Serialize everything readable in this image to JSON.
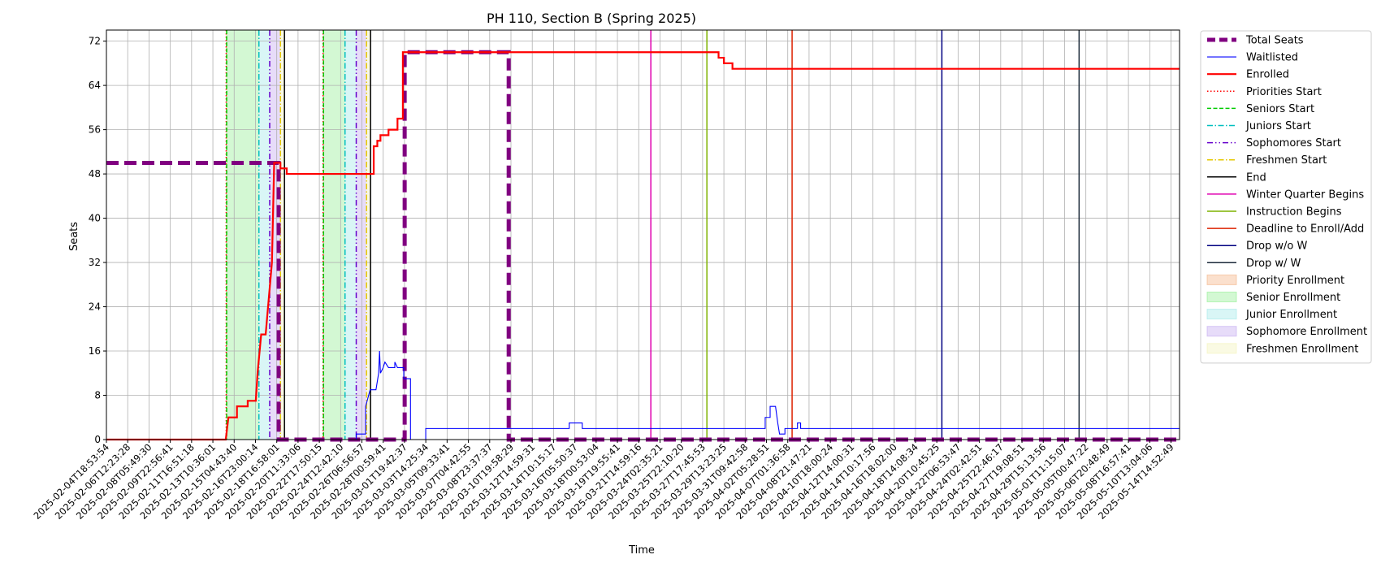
{
  "chart_data": {
    "type": "line",
    "title": "PH 110, Section B (Spring 2025)",
    "xlabel": "Time",
    "ylabel": "Seats",
    "ylim": [
      0,
      74
    ],
    "yticks": [
      0,
      8,
      16,
      24,
      32,
      40,
      48,
      56,
      64,
      72
    ],
    "x_start": "2025-02-04T18:53:54",
    "x_end": "2025-05-15T12:00:00",
    "xtick_labels": [
      "2025-02-04T18:53:54",
      "2025-02-06T12:23:28",
      "2025-02-08T05:49:30",
      "2025-02-09T22:56:41",
      "2025-02-11T16:51:18",
      "2025-02-13T10:36:01",
      "2025-02-15T04:43:40",
      "2025-02-16T23:00:14",
      "2025-02-18T16:58:01",
      "2025-02-20T11:33:06",
      "2025-02-22T17:50:15",
      "2025-02-24T12:42:10",
      "2025-02-26T06:56:57",
      "2025-02-28T00:59:41",
      "2025-03-01T19:42:37",
      "2025-03-03T14:25:34",
      "2025-03-05T09:33:41",
      "2025-03-07T04:42:55",
      "2025-03-08T23:37:37",
      "2025-03-10T19:58:29",
      "2025-03-12T14:59:31",
      "2025-03-14T10:15:17",
      "2025-03-16T05:50:37",
      "2025-03-18T00:53:04",
      "2025-03-19T19:55:41",
      "2025-03-21T14:59:16",
      "2025-03-24T02:35:21",
      "2025-03-25T22:10:20",
      "2025-03-27T17:45:53",
      "2025-03-29T13:23:25",
      "2025-03-31T09:42:58",
      "2025-04-02T05:28:51",
      "2025-04-07T01:36:58",
      "2025-04-08T21:47:21",
      "2025-04-10T18:00:24",
      "2025-04-12T14:00:31",
      "2025-04-14T10:17:56",
      "2025-04-16T18:02:00",
      "2025-04-18T14:08:34",
      "2025-04-20T10:45:25",
      "2025-04-22T06:53:47",
      "2025-04-24T02:42:51",
      "2025-04-25T22:46:17",
      "2025-04-27T19:08:51",
      "2025-04-29T15:13:56",
      "2025-05-01T11:15:07",
      "2025-05-05T00:47:22",
      "2025-05-06T20:48:49",
      "2025-05-08T16:57:41",
      "2025-05-10T13:04:06",
      "2025-05-14T14:52:49"
    ],
    "grid": true,
    "legend_position": "outside-right",
    "series": [
      {
        "name": "Total Seats",
        "color": "#800080",
        "style": "dashed-thick",
        "points": [
          [
            "2025-02-04T18:53:54",
            50
          ],
          [
            "2025-02-20T19:00:00",
            50
          ],
          [
            "2025-02-20T19:00:00",
            0
          ],
          [
            "2025-03-04T12:00:00",
            0
          ],
          [
            "2025-03-04T12:00:00",
            70
          ],
          [
            "2025-03-14T04:00:00",
            70
          ],
          [
            "2025-03-14T04:00:00",
            0
          ],
          [
            "2025-05-15T12:00:00",
            0
          ]
        ]
      },
      {
        "name": "Waitlisted",
        "color": "#0000ff",
        "style": "solid-thin",
        "points": [
          [
            "2025-02-04T18:53:54",
            0
          ],
          [
            "2025-02-28T00:00:00",
            0
          ],
          [
            "2025-02-28T00:00:00",
            1
          ],
          [
            "2025-02-28T21:00:00",
            1
          ],
          [
            "2025-02-28T21:00:00",
            6
          ],
          [
            "2025-03-01T07:00:00",
            9
          ],
          [
            "2025-03-01T20:00:00",
            9
          ],
          [
            "2025-03-02T02:00:00",
            12
          ],
          [
            "2025-03-02T04:00:00",
            16
          ],
          [
            "2025-03-02T06:00:00",
            12
          ],
          [
            "2025-03-02T12:00:00",
            13
          ],
          [
            "2025-03-02T16:00:00",
            14
          ],
          [
            "2025-03-03T00:00:00",
            13
          ],
          [
            "2025-03-03T14:00:00",
            13
          ],
          [
            "2025-03-03T14:00:00",
            14
          ],
          [
            "2025-03-03T20:00:00",
            13
          ],
          [
            "2025-03-04T10:00:00",
            13
          ],
          [
            "2025-03-04T10:00:00",
            11
          ],
          [
            "2025-03-05T01:00:00",
            11
          ],
          [
            "2025-03-05T01:00:00",
            0
          ],
          [
            "2025-03-06T11:00:00",
            0
          ],
          [
            "2025-03-06T11:00:00",
            2
          ],
          [
            "2025-03-19T19:00:00",
            2
          ],
          [
            "2025-03-19T19:00:00",
            3
          ],
          [
            "2025-03-21T00:00:00",
            3
          ],
          [
            "2025-03-21T00:00:00",
            2
          ],
          [
            "2025-04-07T00:00:00",
            2
          ],
          [
            "2025-04-07T00:00:00",
            4
          ],
          [
            "2025-04-07T11:00:00",
            4
          ],
          [
            "2025-04-07T11:00:00",
            6
          ],
          [
            "2025-04-07T23:00:00",
            6
          ],
          [
            "2025-04-08T04:00:00",
            3
          ],
          [
            "2025-04-08T08:00:00",
            1
          ],
          [
            "2025-04-08T20:00:00",
            1
          ],
          [
            "2025-04-08T20:00:00",
            2
          ],
          [
            "2025-04-10T00:00:00",
            2
          ],
          [
            "2025-04-10T00:00:00",
            3
          ],
          [
            "2025-04-10T07:00:00",
            3
          ],
          [
            "2025-04-10T07:00:00",
            2
          ],
          [
            "2025-05-15T12:00:00",
            2
          ]
        ]
      },
      {
        "name": "Enrolled",
        "color": "#ff0000",
        "style": "solid-thick",
        "points": [
          [
            "2025-02-04T18:53:54",
            0
          ],
          [
            "2025-02-15T21:00:00",
            0
          ],
          [
            "2025-02-16T03:00:00",
            4
          ],
          [
            "2025-02-16T22:00:00",
            4
          ],
          [
            "2025-02-16T22:00:00",
            6
          ],
          [
            "2025-02-17T22:00:00",
            6
          ],
          [
            "2025-02-17T22:00:00",
            7
          ],
          [
            "2025-02-18T16:00:00",
            7
          ],
          [
            "2025-02-18T20:00:00",
            12
          ],
          [
            "2025-02-19T04:00:00",
            19
          ],
          [
            "2025-02-19T14:00:00",
            19
          ],
          [
            "2025-02-20T04:00:00",
            32
          ],
          [
            "2025-02-20T09:00:00",
            50
          ],
          [
            "2025-02-20T23:00:00",
            50
          ],
          [
            "2025-02-20T23:00:00",
            49
          ],
          [
            "2025-02-21T13:00:00",
            49
          ],
          [
            "2025-02-21T13:00:00",
            48
          ],
          [
            "2025-03-01T15:00:00",
            48
          ],
          [
            "2025-03-01T15:00:00",
            53
          ],
          [
            "2025-03-01T23:00:00",
            53
          ],
          [
            "2025-03-01T23:00:00",
            54
          ],
          [
            "2025-03-02T06:00:00",
            54
          ],
          [
            "2025-03-02T06:00:00",
            55
          ],
          [
            "2025-03-03T00:00:00",
            55
          ],
          [
            "2025-03-03T00:00:00",
            56
          ],
          [
            "2025-03-03T20:00:00",
            56
          ],
          [
            "2025-03-03T20:00:00",
            58
          ],
          [
            "2025-03-04T08:00:00",
            58
          ],
          [
            "2025-03-04T08:00:00",
            70
          ],
          [
            "2025-04-02T16:00:00",
            70
          ],
          [
            "2025-04-02T16:00:00",
            69
          ],
          [
            "2025-04-03T04:00:00",
            69
          ],
          [
            "2025-04-03T04:00:00",
            68
          ],
          [
            "2025-04-03T23:00:00",
            68
          ],
          [
            "2025-04-03T23:00:00",
            67
          ],
          [
            "2025-05-15T12:00:00",
            67
          ]
        ]
      }
    ],
    "markers": [
      {
        "name": "Priorities Start",
        "color": "#ff0000",
        "style": "dotted",
        "dates": [
          "2025-02-15T22:00:00",
          "2025-02-24T22:00:00"
        ]
      },
      {
        "name": "Seniors Start",
        "color": "#00cc00",
        "style": "dashed",
        "dates": [
          "2025-02-15T23:00:00",
          "2025-02-24T23:00:00"
        ]
      },
      {
        "name": "Juniors Start",
        "color": "#00bfbf",
        "style": "dashdot",
        "dates": [
          "2025-02-18T23:00:00",
          "2025-02-26T23:00:00"
        ]
      },
      {
        "name": "Sophomores Start",
        "color": "#6600cc",
        "style": "dashdotdot",
        "dates": [
          "2025-02-19T23:00:00",
          "2025-02-28T00:00:00"
        ]
      },
      {
        "name": "Freshmen Start",
        "color": "#e6c800",
        "style": "dashdot",
        "dates": [
          "2025-02-20T23:00:00",
          "2025-02-28T23:00:00"
        ]
      },
      {
        "name": "End",
        "color": "#000000",
        "style": "solid",
        "dates": [
          "2025-02-21T08:00:00",
          "2025-03-01T08:00:00"
        ]
      },
      {
        "name": "Winter Quarter Begins",
        "color": "#e000b0",
        "style": "solid",
        "dates": [
          "2025-03-27T09:00:00"
        ]
      },
      {
        "name": "Instruction Begins",
        "color": "#7fb200",
        "style": "solid",
        "dates": [
          "2025-04-01T14:00:00"
        ]
      },
      {
        "name": "Deadline to Enroll/Add",
        "color": "#dd2200",
        "style": "solid",
        "dates": [
          "2025-04-09T12:00:00"
        ]
      },
      {
        "name": "Drop w/o W",
        "color": "#000080",
        "style": "solid",
        "dates": [
          "2025-04-23T10:00:00"
        ]
      },
      {
        "name": "Drop w/ W",
        "color": "#1c2a3a",
        "style": "solid",
        "dates": [
          "2025-05-06T04:00:00"
        ]
      }
    ],
    "spans": [
      {
        "name": "Priority Enrollment",
        "color": "#f4b183",
        "ranges": [
          [
            "2025-02-15T22:00:00",
            "2025-02-15T23:00:00"
          ],
          [
            "2025-02-24T22:00:00",
            "2025-02-24T23:00:00"
          ]
        ]
      },
      {
        "name": "Senior Enrollment",
        "color": "#90ee90",
        "ranges": [
          [
            "2025-02-15T23:00:00",
            "2025-02-18T23:00:00"
          ],
          [
            "2025-02-24T23:00:00",
            "2025-02-26T23:00:00"
          ]
        ]
      },
      {
        "name": "Junior Enrollment",
        "color": "#9fe8e8",
        "ranges": [
          [
            "2025-02-18T23:00:00",
            "2025-02-19T23:00:00"
          ],
          [
            "2025-02-26T23:00:00",
            "2025-02-28T00:00:00"
          ]
        ]
      },
      {
        "name": "Sophomore Enrollment",
        "color": "#c3a8f0",
        "ranges": [
          [
            "2025-02-19T23:00:00",
            "2025-02-20T23:00:00"
          ],
          [
            "2025-02-28T00:00:00",
            "2025-02-28T23:00:00"
          ]
        ]
      },
      {
        "name": "Freshmen Enrollment",
        "color": "#f3f3b8",
        "ranges": [
          [
            "2025-02-20T23:00:00",
            "2025-02-21T08:00:00"
          ],
          [
            "2025-02-28T23:00:00",
            "2025-03-01T08:00:00"
          ]
        ]
      }
    ],
    "legend": [
      {
        "label": "Total Seats",
        "kind": "line",
        "color": "#800080",
        "style": "dashed-thick"
      },
      {
        "label": "Waitlisted",
        "kind": "line",
        "color": "#0000ff",
        "style": "solid-thin"
      },
      {
        "label": "Enrolled",
        "kind": "line",
        "color": "#ff0000",
        "style": "solid-thick"
      },
      {
        "label": "Priorities Start",
        "kind": "line",
        "color": "#ff0000",
        "style": "dotted"
      },
      {
        "label": "Seniors Start",
        "kind": "line",
        "color": "#00cc00",
        "style": "dashed"
      },
      {
        "label": "Juniors Start",
        "kind": "line",
        "color": "#00bfbf",
        "style": "dashdot"
      },
      {
        "label": "Sophomores Start",
        "kind": "line",
        "color": "#6600cc",
        "style": "dashdotdot"
      },
      {
        "label": "Freshmen Start",
        "kind": "line",
        "color": "#e6c800",
        "style": "dashdot"
      },
      {
        "label": "End",
        "kind": "line",
        "color": "#000000",
        "style": "solid"
      },
      {
        "label": "Winter Quarter Begins",
        "kind": "line",
        "color": "#e000b0",
        "style": "solid"
      },
      {
        "label": "Instruction Begins",
        "kind": "line",
        "color": "#7fb200",
        "style": "solid"
      },
      {
        "label": "Deadline to Enroll/Add",
        "kind": "line",
        "color": "#dd2200",
        "style": "solid"
      },
      {
        "label": "Drop w/o W",
        "kind": "line",
        "color": "#000080",
        "style": "solid"
      },
      {
        "label": "Drop w/ W",
        "kind": "line",
        "color": "#1c2a3a",
        "style": "solid"
      },
      {
        "label": "Priority Enrollment",
        "kind": "patch",
        "color": "#f4b183"
      },
      {
        "label": "Senior Enrollment",
        "kind": "patch",
        "color": "#90ee90"
      },
      {
        "label": "Junior Enrollment",
        "kind": "patch",
        "color": "#9fe8e8"
      },
      {
        "label": "Sophomore Enrollment",
        "kind": "patch",
        "color": "#c3a8f0"
      },
      {
        "label": "Freshmen Enrollment",
        "kind": "patch",
        "color": "#f3f3b8"
      }
    ]
  }
}
